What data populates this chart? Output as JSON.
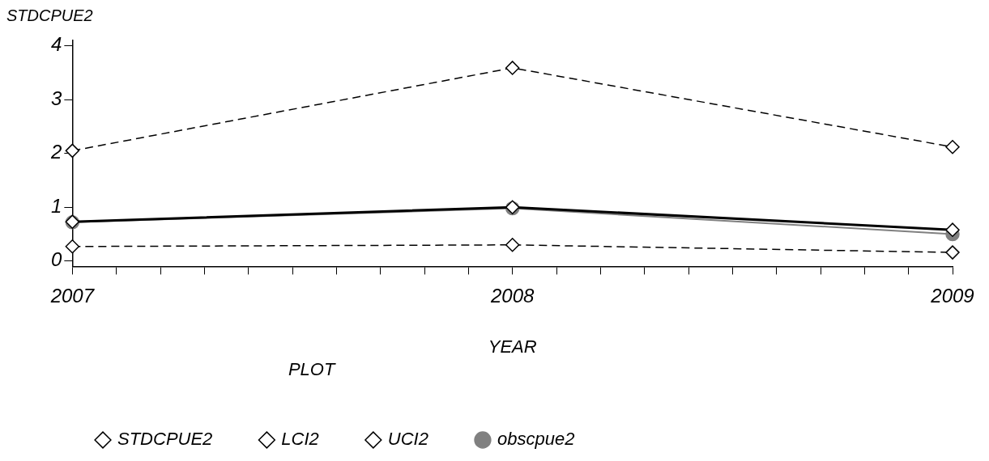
{
  "chart_data": {
    "type": "line",
    "xlabel": "YEAR",
    "ylabel": "STDCPUE2",
    "legend_title": "PLOT",
    "x": [
      2007,
      2008,
      2009
    ],
    "series": [
      {
        "name": "STDCPUE2",
        "color": "#000000",
        "values": [
          0.73,
          1.0,
          0.58
        ],
        "line_style": "solid",
        "marker": "diamond"
      },
      {
        "name": "LCI2",
        "color": "#000000",
        "values": [
          0.27,
          0.3,
          0.16
        ],
        "line_style": "dashed",
        "marker": "diamond"
      },
      {
        "name": "UCI2",
        "color": "#000000",
        "values": [
          2.05,
          3.59,
          2.12
        ],
        "line_style": "dashed",
        "marker": "diamond"
      },
      {
        "name": "obscpue2",
        "color": "#808080",
        "values": [
          0.72,
          0.98,
          0.5
        ],
        "line_style": "solid",
        "marker": "circle"
      }
    ],
    "xlim": [
      2007,
      2009
    ],
    "ylim": [
      -0.1,
      4.1
    ],
    "xticks": [
      2007,
      {
        "value": 2007.1,
        "label": null
      },
      {
        "value": 2007.2,
        "label": null
      },
      {
        "value": 2007.3,
        "label": null
      },
      {
        "value": 2007.4,
        "label": null
      },
      {
        "value": 2007.5,
        "label": null
      },
      {
        "value": 2007.6,
        "label": null
      },
      {
        "value": 2007.7,
        "label": null
      },
      {
        "value": 2007.8,
        "label": null
      },
      {
        "value": 2007.9,
        "label": null
      },
      2008,
      {
        "value": 2008.1,
        "label": null
      },
      {
        "value": 2008.2,
        "label": null
      },
      {
        "value": 2008.3,
        "label": null
      },
      {
        "value": 2008.4,
        "label": null
      },
      {
        "value": 2008.5,
        "label": null
      },
      {
        "value": 2008.6,
        "label": null
      },
      {
        "value": 2008.7,
        "label": null
      },
      {
        "value": 2008.8,
        "label": null
      },
      {
        "value": 2008.9,
        "label": null
      },
      2009
    ],
    "yticks": [
      0,
      1,
      2,
      3,
      4
    ],
    "grid": false,
    "legend": "bottom"
  }
}
